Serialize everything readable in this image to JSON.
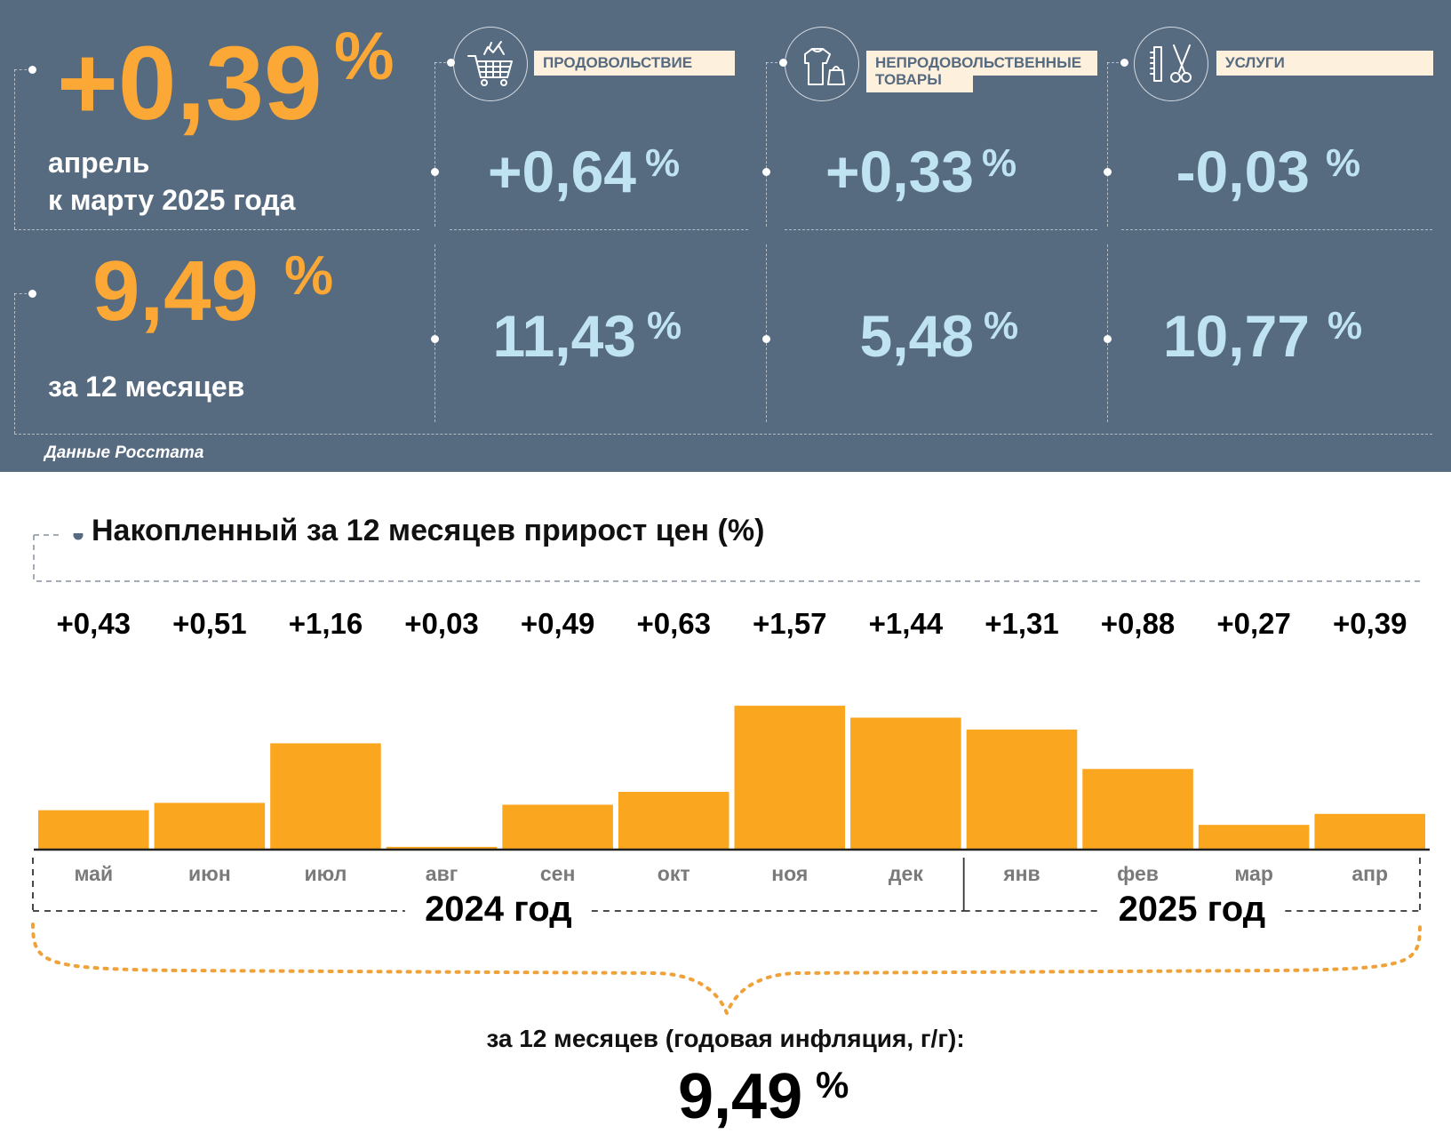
{
  "summary": {
    "monthly_value": "+0,39",
    "monthly_pct": "%",
    "monthly_desc_line1": "апрель",
    "monthly_desc_line2": "к марту 2025 года",
    "annual_value": "9,49",
    "annual_pct": "%",
    "annual_desc": "за 12 месяцев"
  },
  "categories": [
    {
      "label_line1": "ПРОДОВОЛЬСТВИЕ",
      "label_line2": "",
      "icon": "shopping-cart-icon",
      "monthly": "+0,64",
      "annual": "11,43",
      "pct": "%"
    },
    {
      "label_line1": "НЕПРОДОВОЛЬСТВЕННЫЕ",
      "label_line2": "ТОВАРЫ",
      "icon": "clothing-bag-icon",
      "monthly": "+0,33",
      "annual": "5,48",
      "pct": "%"
    },
    {
      "label_line1": "УСЛУГИ",
      "label_line2": "",
      "icon": "comb-scissors-icon",
      "monthly": "-0,03",
      "annual": "10,77",
      "pct": "%"
    }
  ],
  "source": "Данные Росстата",
  "colors": {
    "panel": "#566a80",
    "accent_orange": "#fba836",
    "light_blue": "#bfe3f1",
    "bar": "#fba61f",
    "label_bg": "#fdf0dd"
  },
  "chart_data": {
    "type": "bar",
    "title": "Накопленный за 12 месяцев прирост цен (%)",
    "categories": [
      "май",
      "июн",
      "июл",
      "авг",
      "сен",
      "окт",
      "ноя",
      "дек",
      "янв",
      "фев",
      "мар",
      "апр"
    ],
    "values": [
      0.43,
      0.51,
      1.16,
      0.03,
      0.49,
      0.63,
      1.57,
      1.44,
      1.31,
      0.88,
      0.27,
      0.39
    ],
    "value_labels": [
      "+0,43",
      "+0,51",
      "+1,16",
      "+0,03",
      "+0,49",
      "+0,63",
      "+1,57",
      "+1,44",
      "+1,31",
      "+0,88",
      "+0,27",
      "+0,39"
    ],
    "years": [
      {
        "label": "2024 год",
        "months": 8
      },
      {
        "label": "2025 год",
        "months": 4
      }
    ],
    "ylim": [
      0,
      1.6
    ],
    "grid": false,
    "annual_label": "за 12 месяцев (годовая инфляция, г/г):",
    "annual_value": "9,49",
    "annual_pct": "%"
  }
}
